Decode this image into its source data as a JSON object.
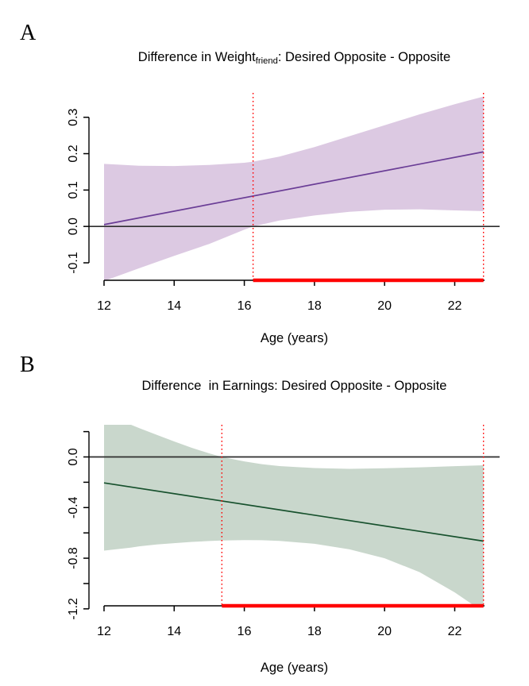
{
  "figure": {
    "background": "#ffffff",
    "red_accent": "#FF0000",
    "zero_line_color": "#2E2E2E",
    "axis_color": "#000000"
  },
  "chart_data": [
    {
      "type": "line",
      "panel_label": "A",
      "title": {
        "pre": "Difference in Weight",
        "sub": "friend",
        "post": ": Desired Opposite - Opposite"
      },
      "xlabel": "Age (years)",
      "xlim": [
        11.57,
        23.28
      ],
      "ylim": [
        -0.148,
        0.367
      ],
      "x_ticks": [
        12,
        14,
        16,
        18,
        20,
        22
      ],
      "x_tick_labels": [
        "12",
        "14",
        "16",
        "18",
        "20",
        "22"
      ],
      "y_ticks": [
        0.3,
        0.2,
        0.1,
        0,
        -0.1
      ],
      "y_tick_labels": [
        "0.3",
        "0.2",
        "0.1",
        "0.0",
        "-0.1"
      ],
      "zero_line": 0,
      "x_axis_start": 12,
      "x_axis_end": 22.85,
      "line": {
        "color": "#6A3D96",
        "x": [
          12,
          22.82
        ],
        "y": [
          0.005,
          0.205
        ]
      },
      "band": {
        "color": "#DCC9E2",
        "x": [
          12,
          13,
          14,
          15,
          16,
          16.25,
          17,
          18,
          19,
          20,
          21,
          22,
          22.82
        ],
        "upper": [
          0.172,
          0.167,
          0.166,
          0.169,
          0.175,
          0.178,
          0.192,
          0.218,
          0.248,
          0.278,
          0.308,
          0.336,
          0.357
        ],
        "lower": [
          -0.15,
          -0.115,
          -0.081,
          -0.048,
          -0.009,
          0.0,
          0.016,
          0.03,
          0.04,
          0.046,
          0.047,
          0.044,
          0.042
        ]
      },
      "significance": {
        "color": "#FF0000",
        "x_start": 16.25,
        "x_end": 22.82
      }
    },
    {
      "type": "line",
      "panel_label": "B",
      "title": {
        "pre": "Difference  in Earnings",
        "sub": "",
        "post": ": Desired Opposite - Opposite"
      },
      "xlabel": "Age (years)",
      "xlim": [
        11.57,
        23.28
      ],
      "ylim": [
        -1.176,
        0.254
      ],
      "x_ticks": [
        12,
        14,
        16,
        18,
        20,
        22
      ],
      "x_tick_labels": [
        "12",
        "14",
        "16",
        "18",
        "20",
        "22"
      ],
      "y_ticks": [
        0.2,
        0,
        -0.2,
        -0.4,
        -0.6,
        -0.8,
        -1.0,
        -1.2
      ],
      "y_tick_labels": [
        "",
        "0.0",
        "",
        "-0.4",
        "",
        "-0.8",
        "",
        "-1.2"
      ],
      "zero_line": 0,
      "x_axis_start": 12,
      "x_axis_end": 22.85,
      "line": {
        "color": "#17512D",
        "x": [
          12,
          22.82
        ],
        "y": [
          -0.205,
          -0.665
        ]
      },
      "band": {
        "color": "#C9D7CC",
        "x": [
          12,
          12.76,
          13,
          13.5,
          14,
          14.5,
          15,
          15.36,
          16,
          16.5,
          17,
          18,
          19,
          20,
          21,
          22,
          22.82
        ],
        "upper": [
          0.29,
          0.255,
          0.228,
          0.175,
          0.122,
          0.072,
          0.028,
          0.0,
          -0.035,
          -0.057,
          -0.072,
          -0.088,
          -0.094,
          -0.09,
          -0.082,
          -0.073,
          -0.066
        ],
        "lower": [
          -0.74,
          -0.717,
          -0.706,
          -0.692,
          -0.681,
          -0.671,
          -0.664,
          -0.66,
          -0.657,
          -0.658,
          -0.663,
          -0.686,
          -0.73,
          -0.8,
          -0.91,
          -1.07,
          -1.225
        ]
      },
      "significance": {
        "color": "#FF0000",
        "x_start": 15.36,
        "x_end": 22.82
      }
    }
  ]
}
